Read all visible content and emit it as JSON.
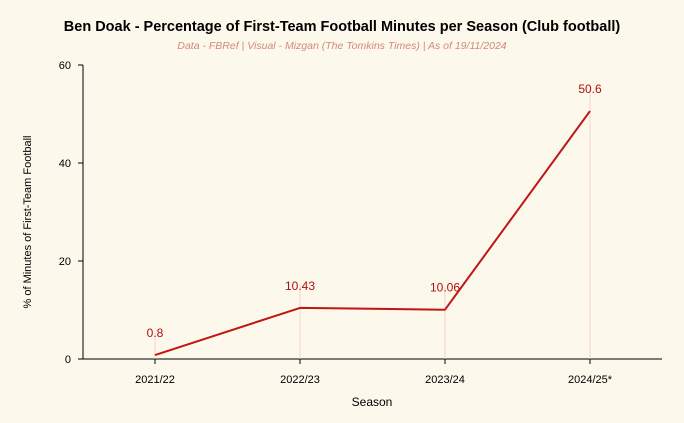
{
  "chart_data": {
    "type": "line",
    "title": "Ben Doak - Percentage of First-Team Football Minutes per Season (Club football)",
    "subtitle": "Data - FBRef | Visual - Mizgan (The Tomkins Times) | As of 19/11/2024",
    "xlabel": "Season",
    "ylabel": "% of Minutes of First-Team Football",
    "categories": [
      "2021/22",
      "2022/23",
      "2023/24",
      "2024/25*"
    ],
    "values": [
      0.8,
      10.43,
      10.06,
      50.6
    ],
    "data_labels": [
      "0.8",
      "10.43",
      "10.06",
      "50.6"
    ],
    "ylim": [
      0,
      60
    ],
    "yticks": [
      0,
      20,
      40,
      60
    ],
    "grid": false,
    "colors": {
      "background": "#fdf8ec",
      "line": "#c01515",
      "data_label": "#b01010",
      "subtitle": "#d08a78",
      "axis": "#000000",
      "drop_line": "#f0c8c8"
    }
  }
}
